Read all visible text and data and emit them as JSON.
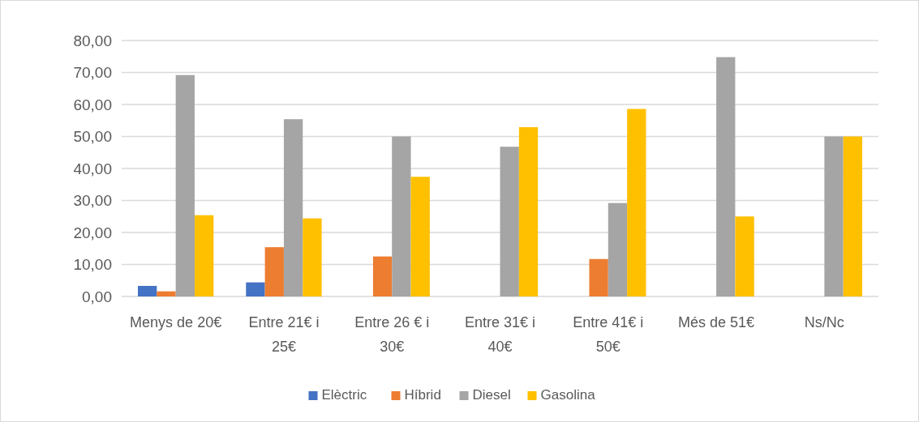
{
  "chart_data": {
    "type": "bar",
    "categories": [
      "Menys de 20€",
      "Entre 21€ i 25€",
      "Entre 26 € i 30€",
      "Entre 31€ i 40€",
      "Entre 41€ i 50€",
      "Més de 51€",
      "Ns/Nc"
    ],
    "series": [
      {
        "name": "Elèctric",
        "color": "#4472c4",
        "values": [
          3.3,
          4.4,
          0,
          0,
          0,
          0,
          0
        ]
      },
      {
        "name": "Híbrid",
        "color": "#ed7d31",
        "values": [
          1.6,
          15.4,
          12.5,
          0,
          11.7,
          0,
          0
        ]
      },
      {
        "name": "Diesel",
        "color": "#a5a5a5",
        "values": [
          69.2,
          55.4,
          50,
          46.8,
          29.2,
          74.8,
          50
        ]
      },
      {
        "name": "Gasolina",
        "color": "#ffc000",
        "values": [
          25.4,
          24.4,
          37.4,
          52.9,
          58.6,
          25,
          50
        ]
      }
    ],
    "ylim": [
      0,
      80
    ],
    "yticks": [
      {
        "value": 0,
        "label": "0,00"
      },
      {
        "value": 10,
        "label": "10,00"
      },
      {
        "value": 20,
        "label": "20,00"
      },
      {
        "value": 30,
        "label": "30,00"
      },
      {
        "value": 40,
        "label": "40,00"
      },
      {
        "value": 50,
        "label": "50,00"
      },
      {
        "value": 60,
        "label": "60,00"
      },
      {
        "value": 70,
        "label": "70,00"
      },
      {
        "value": 80,
        "label": "80,00"
      }
    ],
    "grid": "y",
    "legend": "bottom"
  }
}
